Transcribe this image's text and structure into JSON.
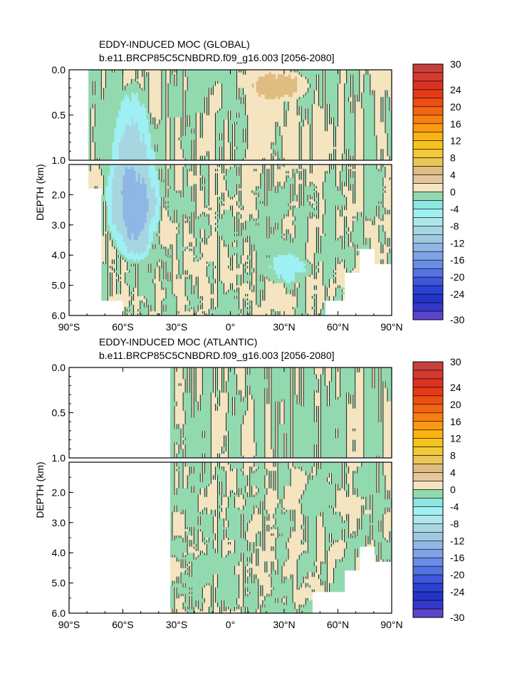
{
  "chart_data": [
    {
      "type": "heatmap",
      "title": "EDDY-INDUCED MOC (GLOBAL)",
      "subtitle": "b.e11.BRCP85C5CNBDRD.f09_g16.003 [2056-2080]",
      "xlabel": "",
      "ylabel": "DEPTH (km)",
      "x_ticks": [
        "90°S",
        "60°S",
        "30°S",
        "0°",
        "30°N",
        "60°N",
        "90°N"
      ],
      "x_tick_values": [
        -90,
        -60,
        -30,
        0,
        30,
        60,
        90
      ],
      "y_ticks_upper": [
        "0.0",
        "0.5",
        "1.0"
      ],
      "y_ticks_upper_values": [
        0,
        0.5,
        1.0
      ],
      "y_ticks_lower": [
        "2.0",
        "3.0",
        "4.0",
        "5.0",
        "6.0"
      ],
      "y_ticks_lower_values": [
        2,
        3,
        4,
        5,
        6
      ],
      "xlim": [
        -90,
        90
      ],
      "ylim_upper": [
        1.0,
        0
      ],
      "ylim_lower": [
        6.0,
        1.0
      ],
      "land_mask": [
        {
          "lat_min": -90,
          "lat_max": -79
        },
        {
          "lat_min": -79,
          "lat_max": -72,
          "depth_min": 1.8
        },
        {
          "lat_min": -72,
          "lat_max": -60,
          "depth_min": 5.5
        },
        {
          "lat_min": 53,
          "lat_max": 64,
          "depth_min": 5.5
        },
        {
          "lat_min": 64,
          "lat_max": 72,
          "depth_min": 4.6
        },
        {
          "lat_min": 72,
          "lat_max": 80,
          "depth_min": 3.8
        },
        {
          "lat_min": 80,
          "lat_max": 90,
          "depth_min": 4.3
        }
      ],
      "features": [
        {
          "name": "Southern Ocean negative cell",
          "lat": [
            -70,
            -38
          ],
          "depth": [
            0.1,
            4.3
          ],
          "min_value": -14
        },
        {
          "name": "North Atlantic deep negative cell",
          "lat": [
            18,
            46
          ],
          "depth": [
            3.9,
            5.0
          ],
          "min_value": -6
        },
        {
          "name": "Near-surface positive cell",
          "lat": [
            10,
            45
          ],
          "depth": [
            0.0,
            0.35
          ],
          "max_value": 6
        }
      ]
    },
    {
      "type": "heatmap",
      "title": "EDDY-INDUCED MOC (ATLANTIC)",
      "subtitle": "b.e11.BRCP85C5CNBDRD.f09_g16.003 [2056-2080]",
      "xlabel": "",
      "ylabel": "DEPTH (km)",
      "x_ticks": [
        "90°S",
        "60°S",
        "30°S",
        "0°",
        "30°N",
        "60°N",
        "90°N"
      ],
      "x_tick_values": [
        -90,
        -60,
        -30,
        0,
        30,
        60,
        90
      ],
      "y_ticks_upper": [
        "0.0",
        "0.5",
        "1.0"
      ],
      "y_ticks_upper_values": [
        0,
        0.5,
        1.0
      ],
      "y_ticks_lower": [
        "2.0",
        "3.0",
        "4.0",
        "5.0",
        "6.0"
      ],
      "y_ticks_lower_values": [
        2,
        3,
        4,
        5,
        6
      ],
      "xlim": [
        -90,
        90
      ],
      "ylim_upper": [
        1.0,
        0
      ],
      "ylim_lower": [
        6.0,
        1.0
      ],
      "land_mask": [
        {
          "lat_min": -90,
          "lat_max": -34
        },
        {
          "lat_min": 46,
          "lat_max": 64,
          "depth_min": 5.3
        },
        {
          "lat_min": 64,
          "lat_max": 72,
          "depth_min": 4.6
        },
        {
          "lat_min": 72,
          "lat_max": 80,
          "depth_min": 3.8
        },
        {
          "lat_min": 80,
          "lat_max": 90,
          "depth_min": 4.3
        }
      ],
      "features": []
    }
  ],
  "colorbar": {
    "labels": [
      "30",
      "24",
      "20",
      "16",
      "12",
      "8",
      "4",
      "0",
      "-4",
      "-8",
      "-12",
      "-16",
      "-20",
      "-24",
      "-30"
    ],
    "label_values": [
      30,
      24,
      20,
      16,
      12,
      8,
      4,
      0,
      -4,
      -8,
      -12,
      -16,
      -20,
      -24,
      -30
    ],
    "colors_top_to_bottom": [
      "#c6413e",
      "#d43a2e",
      "#dd3222",
      "#e63a18",
      "#ec4e14",
      "#f26511",
      "#f77f10",
      "#fa9a10",
      "#fbb313",
      "#f9c31d",
      "#f3c83a",
      "#eac55a",
      "#dfbc80",
      "#e3c79b",
      "#f4e4c0",
      "#93d9b0",
      "#8ee6e0",
      "#9ff0f4",
      "#aee6ea",
      "#a6d7e0",
      "#a0c8e2",
      "#8fb6e4",
      "#7ea4e6",
      "#6a8de6",
      "#5473e2",
      "#3e58dc",
      "#2c42d2",
      "#2234c8",
      "#3338c8",
      "#5b45cc"
    ]
  },
  "colors": {
    "positive_small": "#f4e4c0",
    "positive_mid": "#dfbc80",
    "negative_small": "#93d9b0",
    "negative_mid": "#9ff0f4",
    "negative_strong": "#a6d7e0",
    "negative_core": "#8fb6e4",
    "contour": "#1a1a1a",
    "land": "#ffffff"
  }
}
